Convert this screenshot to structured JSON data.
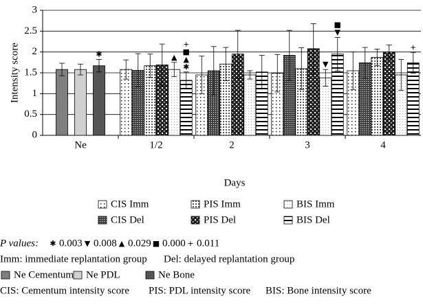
{
  "chart_data": {
    "type": "bar",
    "categories": [
      "Ne",
      "1/2",
      "2",
      "3",
      "4"
    ],
    "xlabel": "Days",
    "ylabel": "Intensity score",
    "ylim": [
      0,
      3
    ],
    "yticks": [
      0,
      0.5,
      1,
      1.5,
      2,
      2.5,
      3
    ],
    "grid": true,
    "series": [
      {
        "name": "Ne Cementum",
        "color": "#808080",
        "values": [
          1.58,
          null,
          null,
          null,
          null
        ],
        "errors": [
          0.15,
          null,
          null,
          null,
          null
        ],
        "markers": [
          null,
          null,
          null,
          null,
          null
        ]
      },
      {
        "name": "Ne PDL",
        "color": "#d0d0d0",
        "values": [
          1.58,
          null,
          null,
          null,
          null
        ],
        "errors": [
          0.13,
          null,
          null,
          null,
          null
        ],
        "markers": [
          null,
          null,
          null,
          null,
          null
        ]
      },
      {
        "name": "Ne Bone",
        "color": "#555555",
        "values": [
          1.67,
          null,
          null,
          null,
          null
        ],
        "errors": [
          0.15,
          null,
          null,
          null,
          null
        ],
        "markers": [
          [
            "✱"
          ],
          null,
          null,
          null,
          null
        ]
      },
      {
        "name": "CIS Imm",
        "pattern": "dots",
        "values": [
          null,
          1.58,
          1.45,
          1.49,
          1.55
        ],
        "errors": [
          null,
          0.23,
          0.45,
          0.45,
          0.45
        ],
        "markers": [
          null,
          null,
          null,
          null,
          null
        ]
      },
      {
        "name": "CIS Del",
        "pattern": "dense",
        "values": [
          null,
          1.56,
          1.55,
          1.92,
          1.74
        ],
        "errors": [
          null,
          0.4,
          0.58,
          0.6,
          0.37
        ],
        "markers": [
          null,
          null,
          null,
          null,
          null
        ]
      },
      {
        "name": "PIS Imm",
        "pattern": "squares",
        "values": [
          null,
          1.67,
          1.71,
          1.6,
          1.87
        ],
        "errors": [
          null,
          0.28,
          0.4,
          0.5,
          0.2
        ],
        "markers": [
          null,
          null,
          null,
          null,
          null
        ]
      },
      {
        "name": "PIS Del",
        "pattern": "checker",
        "values": [
          null,
          1.69,
          1.95,
          2.08,
          2.0
        ],
        "errors": [
          null,
          0.5,
          0.57,
          0.6,
          0.17
        ],
        "markers": [
          null,
          null,
          null,
          null,
          null
        ]
      },
      {
        "name": "BIS Imm",
        "pattern": "light",
        "values": [
          null,
          1.58,
          1.45,
          1.38,
          1.45
        ],
        "errors": [
          null,
          0.17,
          0.1,
          0.2,
          0.37
        ],
        "markers": [
          null,
          [
            "▲"
          ],
          null,
          [
            "▼"
          ],
          null
        ]
      },
      {
        "name": "BIS Del",
        "pattern": "hlines",
        "values": [
          null,
          1.32,
          1.52,
          1.95,
          1.74
        ],
        "errors": [
          null,
          0.2,
          0.4,
          0.4,
          0.25
        ],
        "markers": [
          null,
          [
            "+",
            "■",
            "▲",
            "✱"
          ],
          null,
          [
            "■",
            "▼"
          ],
          [
            "+"
          ]
        ]
      }
    ]
  },
  "notes": {
    "p_values_label": "P values:",
    "p_values": [
      {
        "symbol": "✱",
        "value": "0.003"
      },
      {
        "symbol": "▼",
        "value": "0.008"
      },
      {
        "symbol": "▲",
        "value": "0.029"
      },
      {
        "symbol": "■",
        "value": "0.000"
      },
      {
        "symbol": "+",
        "value": "0.011"
      }
    ],
    "abbreviations": [
      "Imm: immediate replantation group",
      "Del: delayed replantation group"
    ],
    "scores": [
      "CIS: Cementum intensity score",
      "PIS: PDL intensity score",
      "BIS: Bone intensity score"
    ]
  }
}
